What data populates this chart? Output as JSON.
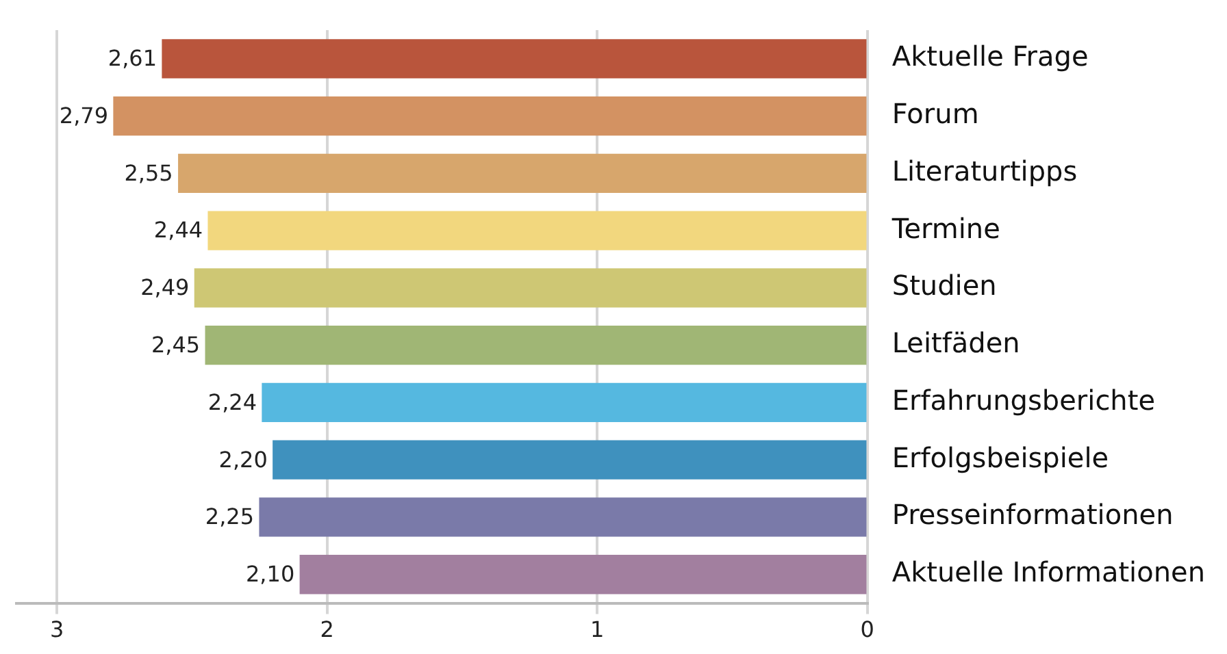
{
  "chart_data": {
    "type": "bar",
    "orientation": "horizontal",
    "categories": [
      "Aktuelle Frage",
      "Forum",
      "Literaturtipps",
      "Termine",
      "Studien",
      "Leitfäden",
      "Erfahrungsberichte",
      "Erfolgsbeispiele",
      "Presseinformationen",
      "Aktuelle Informationen"
    ],
    "values": [
      2.61,
      2.79,
      2.55,
      2.44,
      2.49,
      2.45,
      2.24,
      2.2,
      2.25,
      2.1
    ],
    "value_labels": [
      "2,61",
      "2,79",
      "2,55",
      "2,44",
      "2,49",
      "2,45",
      "2,24",
      "2,20",
      "2,25",
      "2,10"
    ],
    "colors": [
      "#b9553c",
      "#d39262",
      "#d7a66c",
      "#f2d77e",
      "#cec774",
      "#a0b675",
      "#55b8e0",
      "#3f91be",
      "#7a7aa9",
      "#a27f9f"
    ],
    "xlim": [
      3.15,
      0
    ],
    "xticks": [
      3,
      2,
      1,
      0
    ],
    "grid": "x",
    "legend": false
  }
}
